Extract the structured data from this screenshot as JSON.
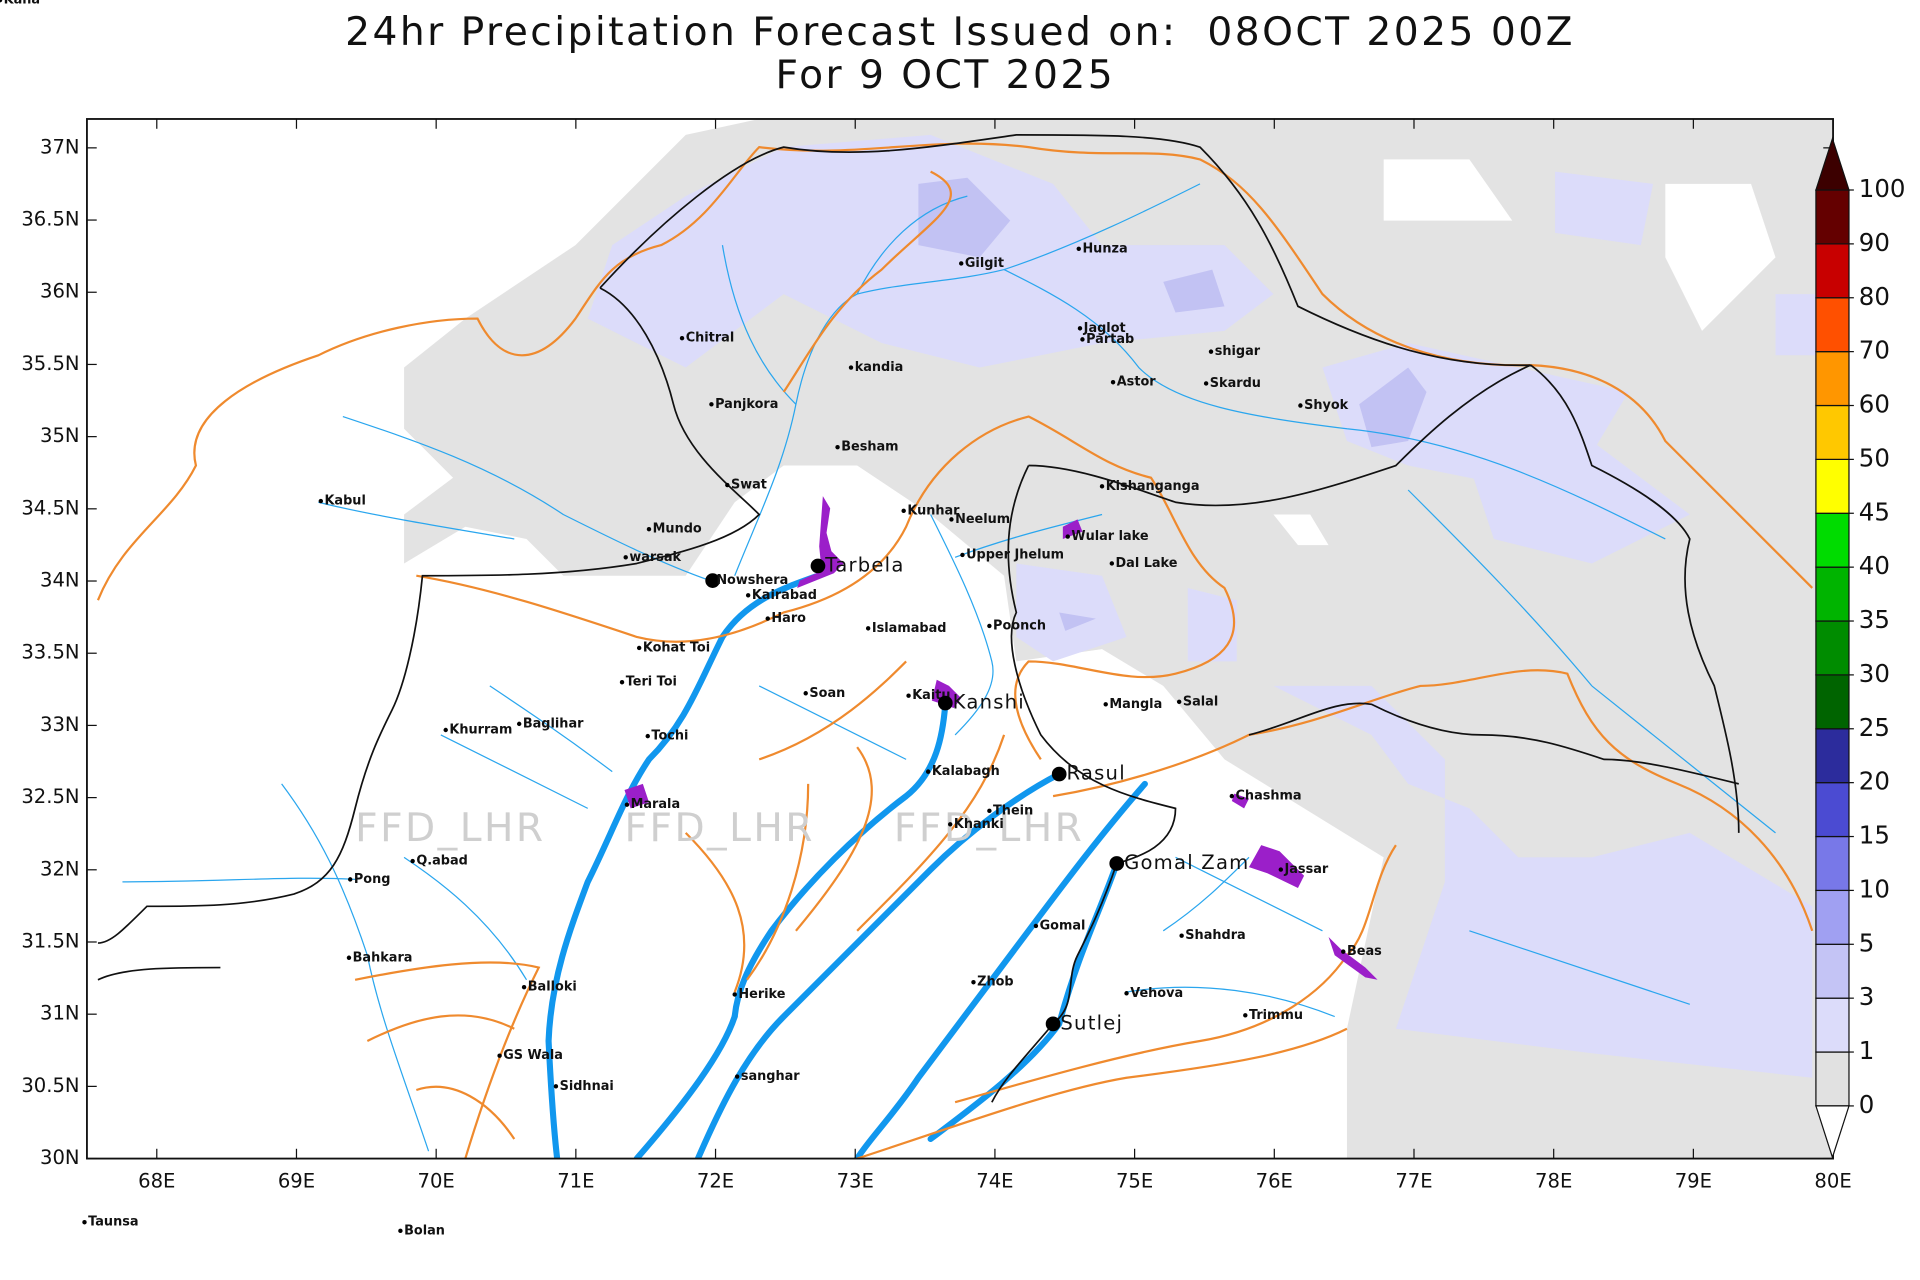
{
  "header": {
    "title": "24hr Precipitation Forecast Issued on:  08OCT 2025 00Z",
    "subtitle": "For 9 OCT 2025"
  },
  "map": {
    "xlim": [
      67.5,
      80
    ],
    "ylim": [
      30,
      37.2
    ],
    "xticks": [
      {
        "value": 68,
        "label": "68E"
      },
      {
        "value": 69,
        "label": "69E"
      },
      {
        "value": 70,
        "label": "70E"
      },
      {
        "value": 71,
        "label": "71E"
      },
      {
        "value": 72,
        "label": "72E"
      },
      {
        "value": 73,
        "label": "73E"
      },
      {
        "value": 74,
        "label": "74E"
      },
      {
        "value": 75,
        "label": "75E"
      },
      {
        "value": 76,
        "label": "76E"
      },
      {
        "value": 77,
        "label": "77E"
      },
      {
        "value": 78,
        "label": "78E"
      },
      {
        "value": 79,
        "label": "79E"
      },
      {
        "value": 80,
        "label": "80E"
      }
    ],
    "yticks": [
      {
        "value": 30,
        "label": "30N"
      },
      {
        "value": 30.5,
        "label": "30.5N"
      },
      {
        "value": 31,
        "label": "31N"
      },
      {
        "value": 31.5,
        "label": "31.5N"
      },
      {
        "value": 32,
        "label": "32N"
      },
      {
        "value": 32.5,
        "label": "32.5N"
      },
      {
        "value": 33,
        "label": "33N"
      },
      {
        "value": 33.5,
        "label": "33.5N"
      },
      {
        "value": 34,
        "label": "34N"
      },
      {
        "value": 34.5,
        "label": "34.5N"
      },
      {
        "value": 35,
        "label": "35N"
      },
      {
        "value": 35.5,
        "label": "35.5N"
      },
      {
        "value": 36,
        "label": "36N"
      },
      {
        "value": 36.5,
        "label": "36.5N"
      },
      {
        "value": 37,
        "label": "37N"
      }
    ],
    "watermark": "FFD_LHR"
  },
  "colorbar": {
    "levels": [
      0,
      1,
      3,
      5,
      10,
      15,
      20,
      25,
      30,
      35,
      40,
      45,
      50,
      60,
      70,
      80,
      90,
      100
    ],
    "colors": [
      "#e1e1e1",
      "#dcdcfa",
      "#c4c4f5",
      "#a0a0f2",
      "#7878e8",
      "#4b4bd2",
      "#2c2c9c",
      "#006400",
      "#008c00",
      "#00b400",
      "#00dc00",
      "#ffff00",
      "#ffc800",
      "#ff9600",
      "#ff5000",
      "#c80000",
      "#640000"
    ],
    "under_color": "#ffffff",
    "over_color": "#3c0000"
  },
  "places": [
    "Gilgit",
    "Hunza",
    "Jaglot",
    "Partab",
    "shigar",
    "Astor",
    "Skardu",
    "Shyok",
    "Chitral",
    "kandia",
    "Panjkora",
    "Besham",
    "Swat",
    "Kishanganga",
    "Kabul",
    "Kunhar",
    "Neelum",
    "Mundo",
    "Wular lake",
    "warsak",
    "Upper Jhelum",
    "Dal Lake",
    "Nowshera",
    "Tarbela",
    "Kairabad",
    "Haro",
    "Islamabad",
    "Poonch",
    "Kohat Toi",
    "Teri Toi",
    "Soan",
    "Kaitu",
    "Kanshi",
    "Mangla",
    "Salal",
    "Baglihar",
    "Khurram",
    "Tochi",
    "Kalabagh",
    "Rasul",
    "Marala",
    "Chashma",
    "Thein",
    "Khanki",
    "Q.abad",
    "Gomal Zam",
    "Jassar",
    "Pong",
    "Gomal",
    "Shahdra",
    "Beas",
    "Bahkara",
    "Zhob",
    "Balloki",
    "Vehova",
    "Herike",
    "Trimmu",
    "Sutlej",
    "GS Wala",
    "sanghar",
    "Sidhnai",
    "Taunsa",
    "Bolan",
    "Kaha"
  ]
}
